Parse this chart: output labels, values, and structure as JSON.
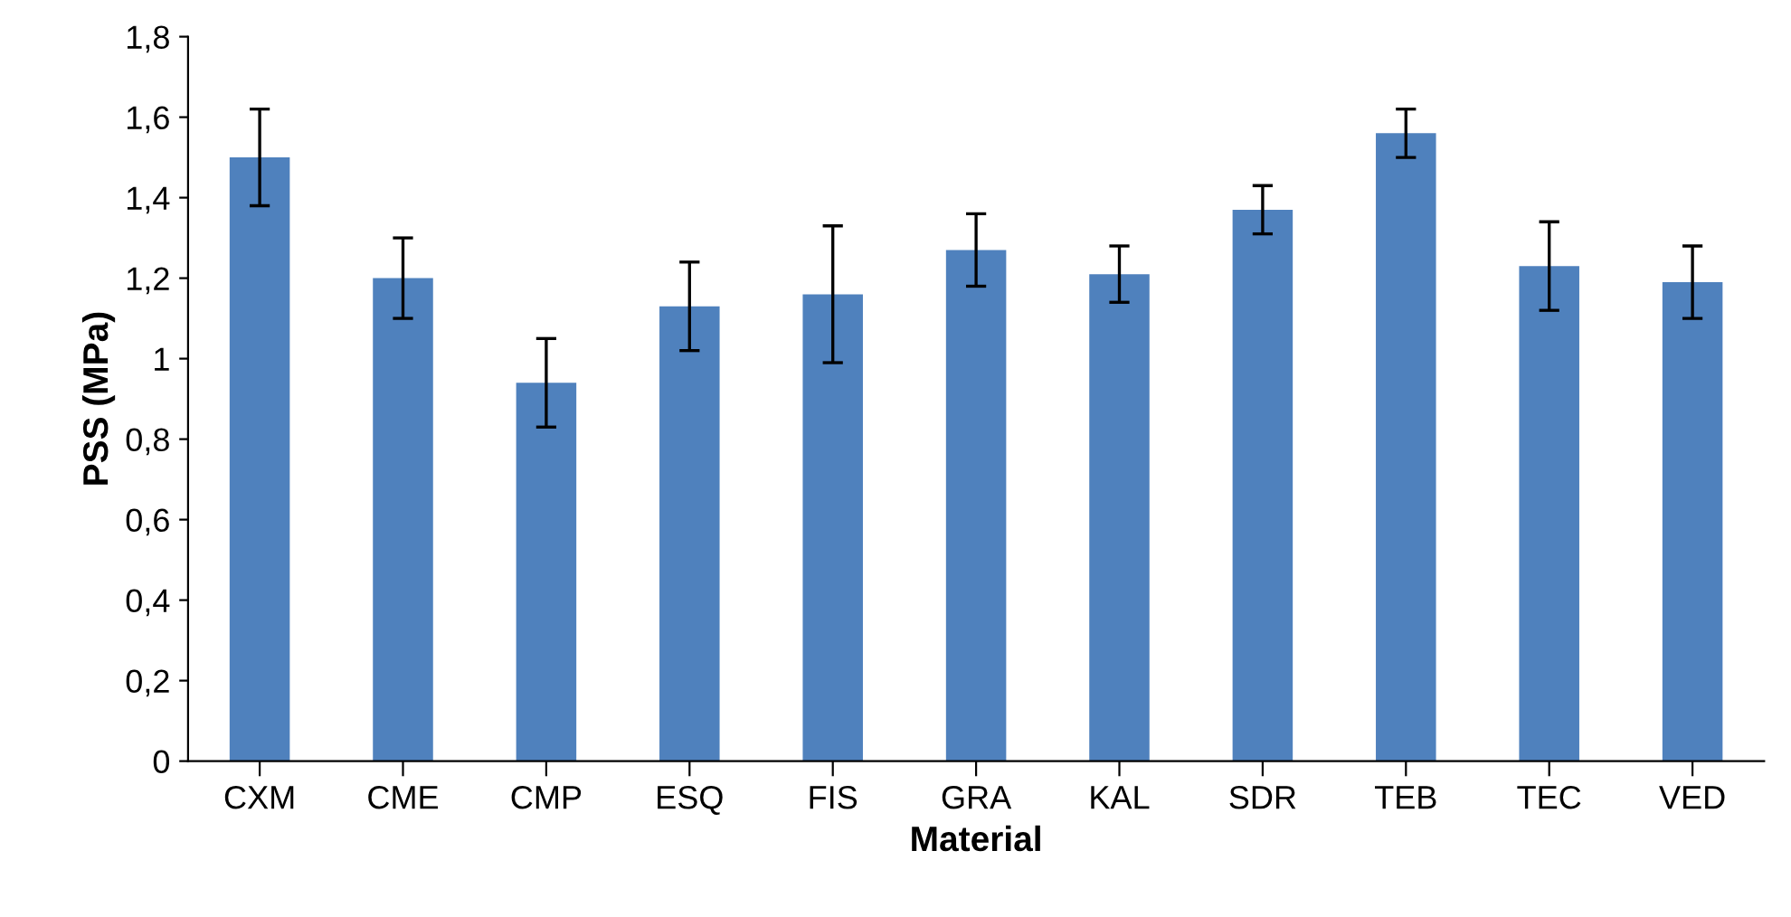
{
  "chart_data": {
    "type": "bar",
    "xlabel": "Material",
    "ylabel": "PSS (MPa)",
    "categories": [
      "CXM",
      "CME",
      "CMP",
      "ESQ",
      "FIS",
      "GRA",
      "KAL",
      "SDR",
      "TEB",
      "TEC",
      "VED"
    ],
    "values": [
      1.5,
      1.2,
      0.94,
      1.13,
      1.16,
      1.27,
      1.21,
      1.37,
      1.56,
      1.23,
      1.19
    ],
    "errors": [
      0.12,
      0.1,
      0.11,
      0.11,
      0.17,
      0.09,
      0.07,
      0.06,
      0.06,
      0.11,
      0.09
    ],
    "color": "#4f81bd",
    "ylim": [
      0,
      1.8
    ],
    "yticks": [
      0,
      {
        "value": 0.2,
        "label": "0,2"
      },
      {
        "value": 0.4,
        "label": "0,4"
      },
      {
        "value": 0.6,
        "label": "0,6"
      },
      {
        "value": 0.8,
        "label": "0,8"
      },
      1,
      {
        "value": 1.2,
        "label": "1,2"
      },
      {
        "value": 1.4,
        "label": "1,4"
      },
      {
        "value": 1.6,
        "label": "1,6"
      },
      {
        "value": 1.8,
        "label": "1,8"
      }
    ],
    "grid": false,
    "legend": false
  }
}
